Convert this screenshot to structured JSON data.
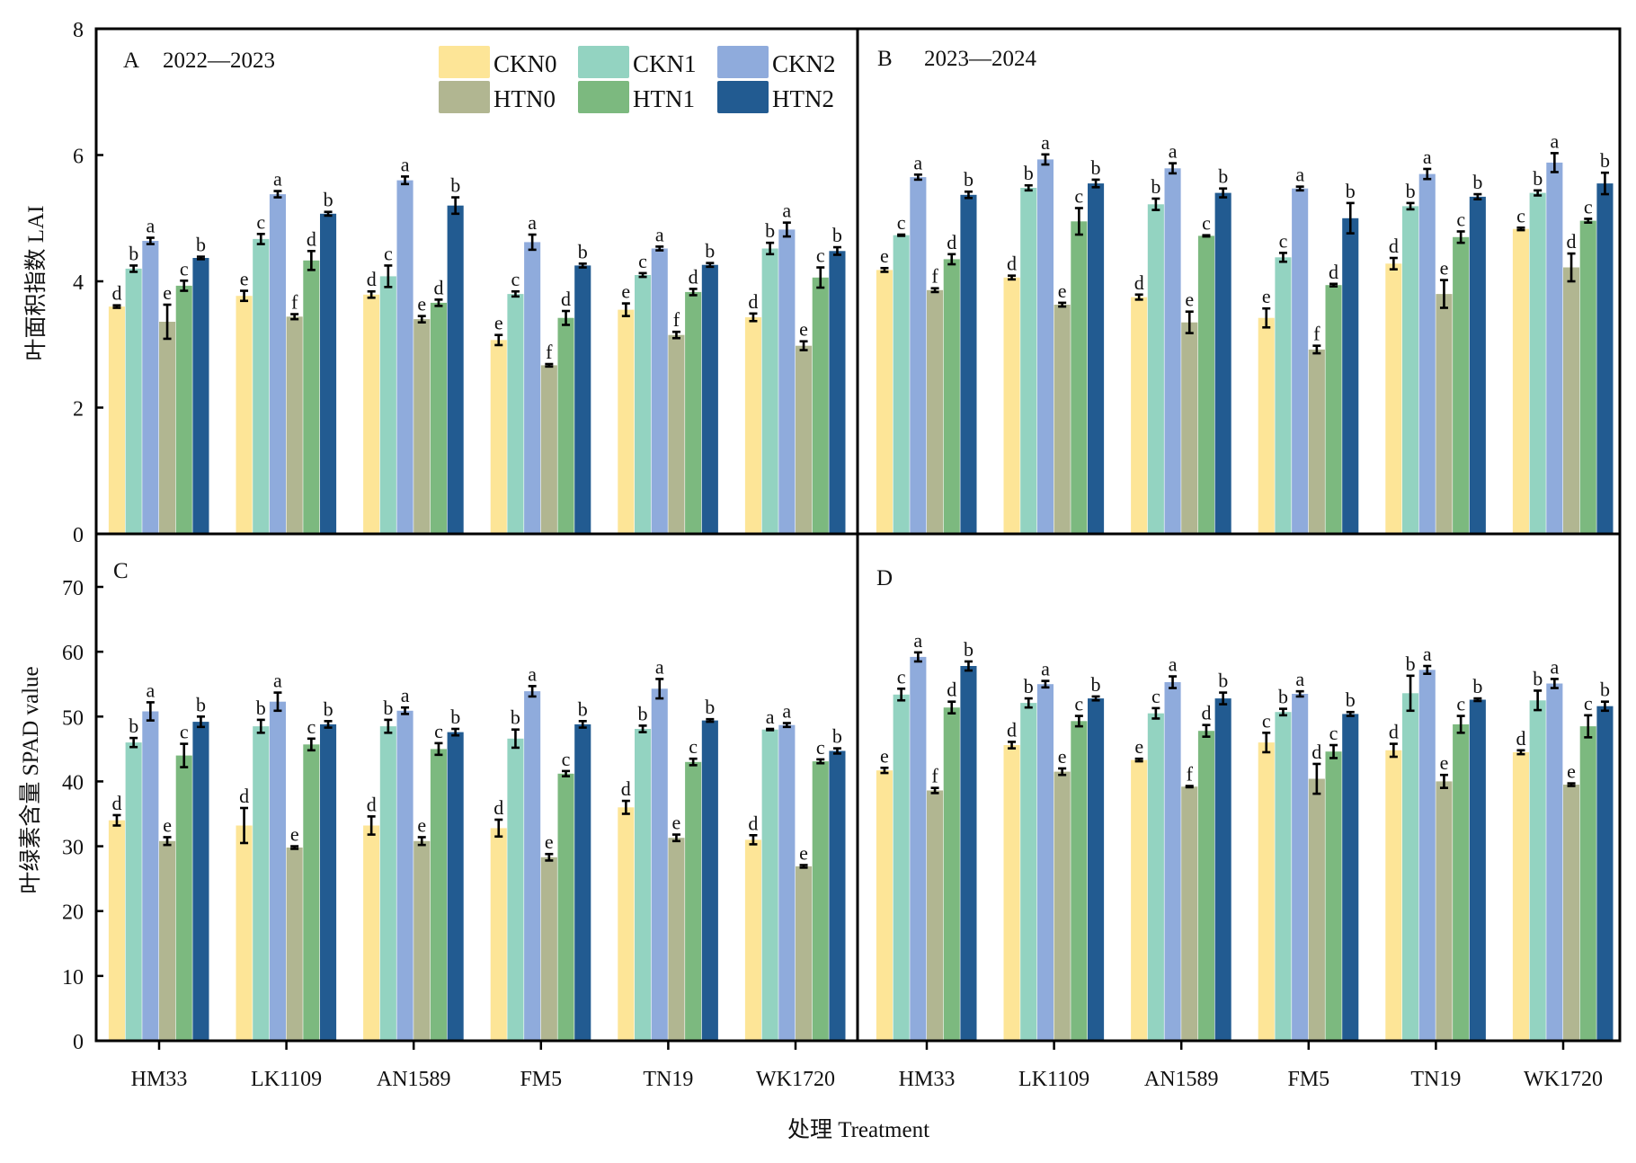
{
  "chart_data": {
    "type": "bar",
    "x_title": "处理 Treatment",
    "categories": [
      "HM33",
      "LK1109",
      "AN1589",
      "FM5",
      "TN19",
      "WK1720"
    ],
    "series_names": [
      "CKN0",
      "CKN1",
      "CKN2",
      "HTN0",
      "HTN1",
      "HTN2"
    ],
    "colors": {
      "CKN0": "#fde597",
      "CKN1": "#93d3c1",
      "CKN2": "#8fabdc",
      "HTN0": "#b1b691",
      "HTN1": "#7cb97f",
      "HTN2": "#225b91"
    },
    "legend": {
      "placement": "top-left-panel-right",
      "entries": [
        "CKN0",
        "CKN1",
        "CKN2",
        "HTN0",
        "HTN1",
        "HTN2"
      ]
    },
    "rows": [
      {
        "ylabel": "叶面积指数 LAI",
        "ylim": [
          0,
          8
        ],
        "yticks": [
          0,
          2,
          4,
          6,
          8
        ],
        "yticklabels": [
          "0",
          "2",
          "4",
          "6",
          "8"
        ]
      },
      {
        "ylabel": "叶绿素含量 SPAD value",
        "ylim": [
          0,
          70
        ],
        "yticks": [
          0,
          10,
          20,
          30,
          40,
          50,
          60,
          70
        ],
        "yticklabels": [
          "0",
          "10",
          "20",
          "30",
          "40",
          "50",
          "60",
          "70"
        ]
      }
    ],
    "panels": [
      {
        "id": "A",
        "label": "A",
        "subtitle": "2022—2023",
        "row": 0,
        "col": 0,
        "series": [
          {
            "name": "CKN0",
            "values": [
              3.6,
              3.77,
              3.79,
              3.07,
              3.55,
              3.43
            ],
            "errors": [
              0.02,
              0.08,
              0.05,
              0.08,
              0.1,
              0.06
            ],
            "letters": [
              "d",
              "e",
              "d",
              "e",
              "e",
              "d"
            ]
          },
          {
            "name": "CKN1",
            "values": [
              4.2,
              4.67,
              4.08,
              3.8,
              4.1,
              4.52
            ],
            "errors": [
              0.05,
              0.08,
              0.17,
              0.04,
              0.03,
              0.09
            ],
            "letters": [
              "b",
              "c",
              "c",
              "c",
              "c",
              "b"
            ]
          },
          {
            "name": "CKN2",
            "values": [
              4.64,
              5.38,
              5.6,
              4.62,
              4.52,
              4.82
            ],
            "errors": [
              0.05,
              0.05,
              0.06,
              0.12,
              0.03,
              0.11
            ],
            "letters": [
              "a",
              "a",
              "a",
              "a",
              "a",
              "a"
            ]
          },
          {
            "name": "HTN0",
            "values": [
              3.36,
              3.44,
              3.4,
              2.67,
              3.15,
              2.98
            ],
            "errors": [
              0.27,
              0.04,
              0.05,
              0.02,
              0.05,
              0.07
            ],
            "letters": [
              "e",
              "f",
              "e",
              "f",
              "f",
              "e"
            ]
          },
          {
            "name": "HTN1",
            "values": [
              3.93,
              4.33,
              3.66,
              3.42,
              3.83,
              4.06
            ],
            "errors": [
              0.08,
              0.15,
              0.05,
              0.11,
              0.05,
              0.16
            ],
            "letters": [
              "c",
              "d",
              "d",
              "d",
              "d",
              "c"
            ]
          },
          {
            "name": "HTN2",
            "values": [
              4.37,
              5.07,
              5.2,
              4.25,
              4.26,
              4.48
            ],
            "errors": [
              0.02,
              0.03,
              0.13,
              0.03,
              0.03,
              0.06
            ],
            "letters": [
              "b",
              "b",
              "b",
              "b",
              "b",
              "b"
            ]
          }
        ]
      },
      {
        "id": "B",
        "label": "B",
        "subtitle": "2023—2024",
        "row": 0,
        "col": 1,
        "series": [
          {
            "name": "CKN0",
            "values": [
              4.18,
              4.06,
              3.75,
              3.42,
              4.28,
              4.83
            ],
            "errors": [
              0.03,
              0.03,
              0.04,
              0.15,
              0.09,
              0.02
            ],
            "letters": [
              "e",
              "d",
              "d",
              "e",
              "d",
              "c"
            ]
          },
          {
            "name": "CKN1",
            "values": [
              4.73,
              5.48,
              5.22,
              4.38,
              5.19,
              5.4
            ],
            "errors": [
              0.01,
              0.04,
              0.09,
              0.07,
              0.05,
              0.04
            ],
            "letters": [
              "c",
              "b",
              "b",
              "c",
              "b",
              "b"
            ]
          },
          {
            "name": "CKN2",
            "values": [
              5.65,
              5.93,
              5.79,
              5.47,
              5.7,
              5.88
            ],
            "errors": [
              0.04,
              0.08,
              0.08,
              0.03,
              0.08,
              0.15
            ],
            "letters": [
              "a",
              "a",
              "a",
              "a",
              "a",
              "a"
            ]
          },
          {
            "name": "HTN0",
            "values": [
              3.86,
              3.63,
              3.35,
              2.92,
              3.8,
              4.22
            ],
            "errors": [
              0.03,
              0.03,
              0.17,
              0.06,
              0.22,
              0.22
            ],
            "letters": [
              "f",
              "e",
              "e",
              "f",
              "e",
              "d"
            ]
          },
          {
            "name": "HTN1",
            "values": [
              4.35,
              4.95,
              4.72,
              3.94,
              4.7,
              4.96
            ],
            "errors": [
              0.08,
              0.21,
              0.01,
              0.02,
              0.09,
              0.03
            ],
            "letters": [
              "d",
              "c",
              "c",
              "d",
              "c",
              "c"
            ]
          },
          {
            "name": "HTN2",
            "values": [
              5.37,
              5.55,
              5.4,
              5.0,
              5.34,
              5.55
            ],
            "errors": [
              0.05,
              0.06,
              0.07,
              0.24,
              0.04,
              0.17
            ],
            "letters": [
              "b",
              "b",
              "b",
              "b",
              "b",
              "b"
            ]
          }
        ]
      },
      {
        "id": "C",
        "label": "C",
        "subtitle": "",
        "row": 1,
        "col": 0,
        "series": [
          {
            "name": "CKN0",
            "values": [
              34.0,
              33.2,
              33.2,
              32.8,
              36.0,
              31.0
            ],
            "errors": [
              0.8,
              2.7,
              1.4,
              1.3,
              1.0,
              0.7
            ],
            "letters": [
              "d",
              "d",
              "d",
              "d",
              "d",
              "d"
            ]
          },
          {
            "name": "CKN1",
            "values": [
              46.0,
              48.5,
              48.5,
              46.6,
              48.1,
              48.0
            ],
            "errors": [
              0.7,
              1.0,
              1.0,
              1.4,
              0.5,
              0.1
            ],
            "letters": [
              "b",
              "b",
              "b",
              "b",
              "b",
              "a"
            ]
          },
          {
            "name": "CKN2",
            "values": [
              50.8,
              52.3,
              50.9,
              53.9,
              54.3,
              48.7
            ],
            "errors": [
              1.4,
              1.4,
              0.5,
              0.8,
              1.5,
              0.3
            ],
            "letters": [
              "a",
              "a",
              "a",
              "a",
              "a",
              "a"
            ]
          },
          {
            "name": "HTN0",
            "values": [
              30.8,
              29.8,
              30.8,
              28.3,
              31.3,
              26.9
            ],
            "errors": [
              0.6,
              0.2,
              0.6,
              0.5,
              0.5,
              0.2
            ],
            "letters": [
              "e",
              "e",
              "e",
              "e",
              "e",
              "e"
            ]
          },
          {
            "name": "HTN1",
            "values": [
              44.0,
              45.7,
              45.0,
              41.2,
              43.0,
              43.1
            ],
            "errors": [
              1.8,
              0.9,
              0.9,
              0.4,
              0.5,
              0.3
            ],
            "letters": [
              "c",
              "c",
              "c",
              "c",
              "c",
              "c"
            ]
          },
          {
            "name": "HTN2",
            "values": [
              49.2,
              48.8,
              47.6,
              48.8,
              49.4,
              44.7
            ],
            "errors": [
              0.8,
              0.5,
              0.5,
              0.5,
              0.2,
              0.4
            ],
            "letters": [
              "b",
              "b",
              "b",
              "b",
              "b",
              "b"
            ]
          }
        ]
      },
      {
        "id": "D",
        "label": "D",
        "subtitle": "",
        "row": 1,
        "col": 1,
        "series": [
          {
            "name": "CKN0",
            "values": [
              41.7,
              45.6,
              43.3,
              46.0,
              44.8,
              44.5
            ],
            "errors": [
              0.4,
              0.5,
              0.2,
              1.5,
              1.0,
              0.3
            ],
            "letters": [
              "e",
              "d",
              "e",
              "c",
              "d",
              "d"
            ]
          },
          {
            "name": "CKN1",
            "values": [
              53.4,
              52.1,
              50.5,
              50.7,
              53.6,
              52.5
            ],
            "errors": [
              0.9,
              0.7,
              0.8,
              0.5,
              2.7,
              1.5
            ],
            "letters": [
              "c",
              "b",
              "c",
              "b",
              "b",
              "b"
            ]
          },
          {
            "name": "CKN2",
            "values": [
              59.2,
              55.0,
              55.3,
              53.5,
              57.2,
              55.1
            ],
            "errors": [
              0.7,
              0.5,
              0.9,
              0.4,
              0.6,
              0.7
            ],
            "letters": [
              "a",
              "a",
              "a",
              "a",
              "a",
              "a"
            ]
          },
          {
            "name": "HTN0",
            "values": [
              38.6,
              41.5,
              39.2,
              40.4,
              40.0,
              39.5
            ],
            "errors": [
              0.4,
              0.5,
              0.1,
              2.3,
              1.0,
              0.2
            ],
            "letters": [
              "f",
              "e",
              "f",
              "d",
              "e",
              "e"
            ]
          },
          {
            "name": "HTN1",
            "values": [
              51.4,
              49.3,
              47.8,
              44.6,
              48.8,
              48.5
            ],
            "errors": [
              0.9,
              0.8,
              0.9,
              1.0,
              1.3,
              1.7
            ],
            "letters": [
              "d",
              "c",
              "d",
              "c",
              "c",
              "c"
            ]
          },
          {
            "name": "HTN2",
            "values": [
              57.8,
              52.8,
              52.8,
              50.4,
              52.6,
              51.6
            ],
            "errors": [
              0.7,
              0.3,
              0.9,
              0.3,
              0.2,
              0.7
            ],
            "letters": [
              "b",
              "b",
              "b",
              "b",
              "b",
              "b"
            ]
          }
        ]
      }
    ]
  }
}
